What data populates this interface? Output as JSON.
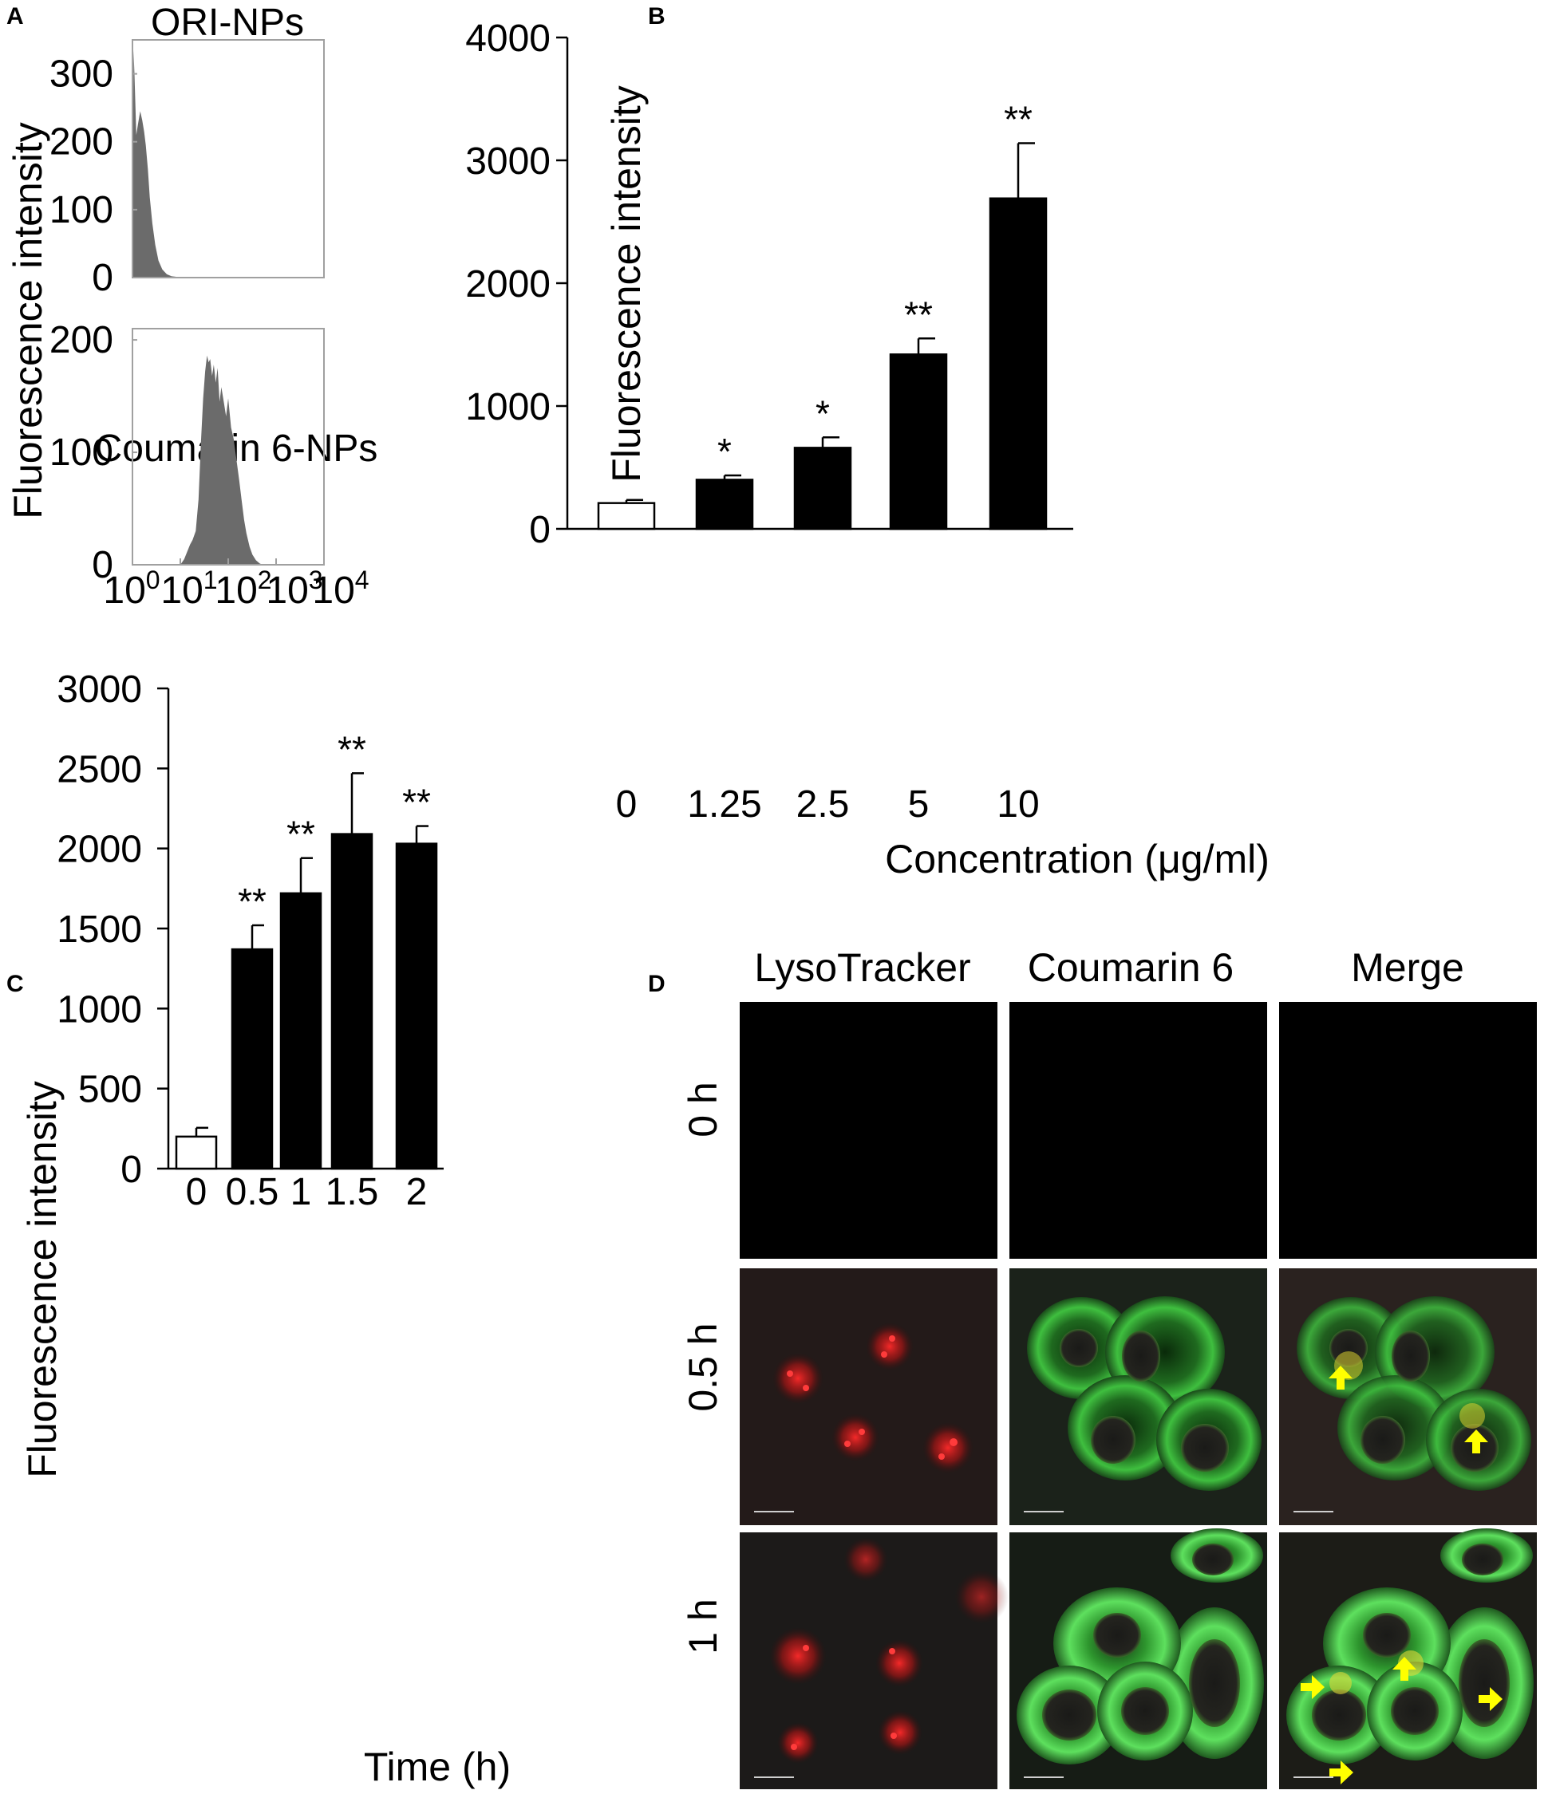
{
  "chart_data": [
    {
      "panel": "A",
      "type": "area",
      "ylabel": "Fluorescence intensity",
      "xticks": [
        "10",
        "10",
        "10",
        "10",
        "10"
      ],
      "xtick_exponents": [
        "0",
        "1",
        "2",
        "3",
        "4"
      ],
      "x_scale": "log",
      "xlim": [
        1,
        10000
      ],
      "subplots": [
        {
          "title": "ORI-NPs",
          "yticks": [
            "300",
            "200",
            "100",
            "0"
          ],
          "ylim": [
            0,
            350
          ],
          "color": "#6b6b6b",
          "x": [
            1.0,
            1.05,
            1.1,
            1.2,
            1.3,
            1.45,
            1.6,
            1.75,
            1.9,
            2.1,
            2.3,
            2.6,
            3.0,
            3.5,
            4.2,
            5.2,
            6.5,
            8.5,
            11
          ],
          "y": [
            0,
            335,
            300,
            210,
            225,
            245,
            232,
            215,
            195,
            160,
            118,
            80,
            48,
            25,
            12,
            5,
            2,
            1,
            0
          ]
        },
        {
          "title": "Coumarin 6-NPs",
          "yticks": [
            "200",
            "100",
            "0"
          ],
          "ylim": [
            0,
            210
          ],
          "color": "#6b6b6b",
          "x": [
            10,
            12,
            14,
            16,
            18,
            21,
            24,
            27,
            30,
            33,
            36,
            39,
            42,
            46,
            50,
            55,
            60,
            66,
            72,
            80,
            90,
            100,
            115,
            130,
            150,
            170,
            190,
            215,
            240,
            280,
            320,
            380,
            460,
            560
          ],
          "y": [
            0,
            5,
            12,
            18,
            22,
            30,
            58,
            110,
            148,
            172,
            186,
            180,
            183,
            168,
            178,
            162,
            175,
            145,
            158,
            146,
            132,
            148,
            122,
            112,
            92,
            75,
            58,
            40,
            28,
            16,
            9,
            4,
            1,
            0
          ]
        }
      ]
    },
    {
      "panel": "B",
      "type": "bar",
      "categories": [
        "0",
        "1.25",
        "2.5",
        "5",
        "10"
      ],
      "values": [
        210,
        400,
        660,
        1420,
        2690
      ],
      "errors": [
        25,
        35,
        85,
        130,
        450
      ],
      "significance": [
        "",
        "*",
        "*",
        "**",
        "**"
      ],
      "bar_colors": [
        "#ffffff",
        "#000000",
        "#000000",
        "#000000",
        "#000000"
      ],
      "xlabel": "Concentration (μg/ml)",
      "ylabel": "Fluorescence intensity",
      "yticks": [
        "4000",
        "3000",
        "2000",
        "1000",
        "0"
      ],
      "ylim": [
        0,
        4000
      ]
    },
    {
      "panel": "C",
      "type": "bar",
      "categories": [
        "0",
        "0.5",
        "1",
        "1.5",
        "2"
      ],
      "values": [
        200,
        1370,
        1720,
        2090,
        2030
      ],
      "errors": [
        55,
        150,
        220,
        380,
        110
      ],
      "significance": [
        "",
        "**",
        "**",
        "**",
        "**"
      ],
      "bar_colors": [
        "#ffffff",
        "#000000",
        "#000000",
        "#000000",
        "#000000"
      ],
      "xlabel": "Time (h)",
      "ylabel": "Fluorescence intensity",
      "yticks": [
        "3000",
        "2500",
        "2000",
        "1500",
        "1000",
        "500",
        "0"
      ],
      "ylim": [
        0,
        3000
      ]
    }
  ],
  "panels": {
    "a": "A",
    "b": "B",
    "c": "C",
    "d": "D"
  },
  "panel_d": {
    "columns": [
      "LysoTracker",
      "Coumarin 6",
      "Merge"
    ],
    "rows": [
      "0 h",
      "0.5 h",
      "1 h"
    ]
  }
}
